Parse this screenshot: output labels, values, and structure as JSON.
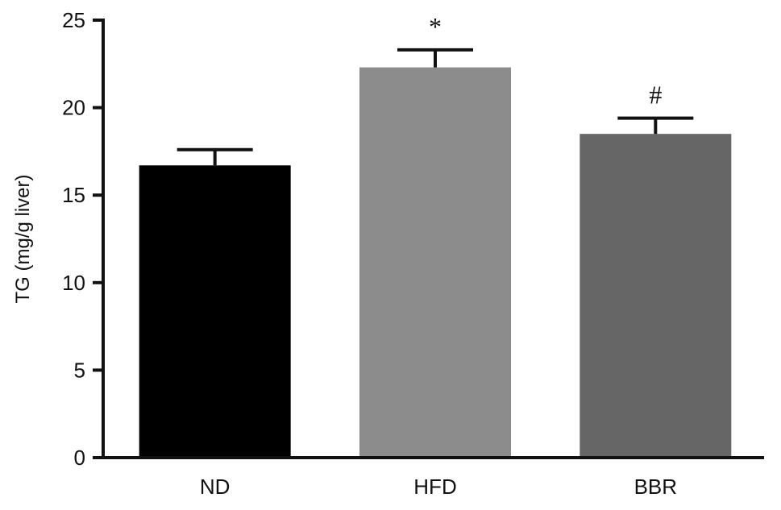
{
  "chart_data": {
    "type": "bar",
    "title": "",
    "xlabel": "",
    "ylabel": "TG (mg/g liver)",
    "categories": [
      "ND",
      "HFD",
      "BBR"
    ],
    "values": [
      16.7,
      22.3,
      18.5
    ],
    "error": [
      0.9,
      1.0,
      0.9
    ],
    "annotations": [
      "",
      "*",
      "#"
    ],
    "colors": [
      "#000000",
      "#8c8c8c",
      "#666666"
    ],
    "ylim": [
      0,
      25
    ],
    "yticks": [
      0,
      5,
      10,
      15,
      20,
      25
    ],
    "grid": false,
    "legend": "none"
  }
}
